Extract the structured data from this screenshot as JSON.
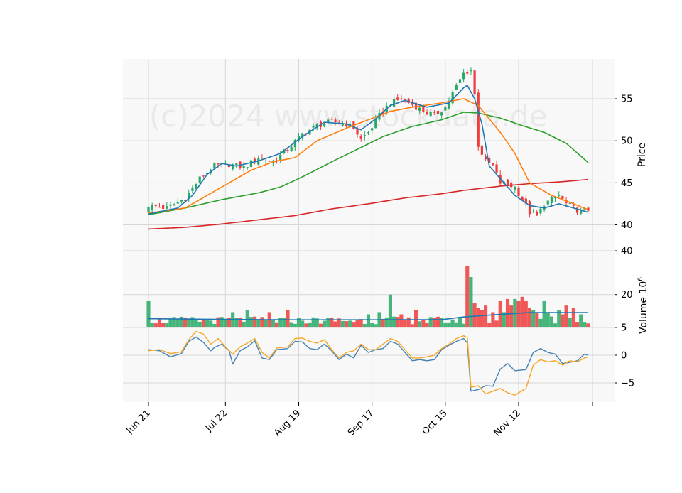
{
  "chart_data": {
    "type": "candlestick",
    "watermark": "(c)2024 www.stockdata.de",
    "x_tick_labels": [
      "Jun 21",
      "Jul 22",
      "Aug 19",
      "Sep 17",
      "Oct 15",
      "Nov 12"
    ],
    "x_tick_index": [
      0,
      21,
      41,
      61,
      81,
      101
    ],
    "n_bars": 121,
    "colors": {
      "up": "#26a965",
      "down": "#ef3b3b",
      "sma_fast": "#1f77b4",
      "sma_mid": "#ff7f0e",
      "sma_slow": "#2ca02c",
      "sma_long": "#d62728",
      "vol_avg": "#1f77b4",
      "osc1": "#4682b4",
      "osc2": "#f5a623"
    },
    "price_panel": {
      "ylabel": "Price",
      "ylim": [
        38,
        60
      ],
      "ticks": [
        40,
        45,
        50,
        55
      ],
      "tick_labels": [
        "40",
        "45",
        "50",
        "55"
      ],
      "close_anchors": [
        [
          0,
          42.3
        ],
        [
          5,
          42.0
        ],
        [
          10,
          43.2
        ],
        [
          14,
          45.5
        ],
        [
          18,
          47.0
        ],
        [
          22,
          47.2
        ],
        [
          26,
          46.8
        ],
        [
          30,
          48.0
        ],
        [
          34,
          47.5
        ],
        [
          38,
          49.0
        ],
        [
          42,
          50.8
        ],
        [
          46,
          51.8
        ],
        [
          50,
          52.3
        ],
        [
          54,
          52.0
        ],
        [
          56,
          51.5
        ],
        [
          58,
          50.2
        ],
        [
          60,
          51.0
        ],
        [
          63,
          53.0
        ],
        [
          66,
          54.5
        ],
        [
          69,
          55.0
        ],
        [
          72,
          54.3
        ],
        [
          75,
          53.5
        ],
        [
          78,
          53.0
        ],
        [
          81,
          54.0
        ],
        [
          84,
          56.5
        ],
        [
          86,
          58.0
        ],
        [
          88,
          58.5
        ],
        [
          89,
          55.5
        ],
        [
          90,
          49.5
        ],
        [
          92,
          47.5
        ],
        [
          94,
          47.0
        ],
        [
          96,
          45.0
        ],
        [
          98,
          44.8
        ],
        [
          100,
          44.5
        ],
        [
          102,
          43.0
        ],
        [
          104,
          41.5
        ],
        [
          106,
          41.0
        ],
        [
          108,
          42.5
        ],
        [
          110,
          43.0
        ],
        [
          112,
          43.5
        ],
        [
          114,
          42.5
        ],
        [
          116,
          42.0
        ],
        [
          118,
          41.5
        ],
        [
          120,
          41.8
        ]
      ],
      "sma_fast_anchors": [
        [
          0,
          41.3
        ],
        [
          8,
          42.0
        ],
        [
          12,
          43.5
        ],
        [
          16,
          46.0
        ],
        [
          20,
          47.3
        ],
        [
          24,
          47.0
        ],
        [
          30,
          47.6
        ],
        [
          36,
          48.5
        ],
        [
          42,
          50.5
        ],
        [
          48,
          52.2
        ],
        [
          54,
          52.0
        ],
        [
          58,
          51.3
        ],
        [
          62,
          52.6
        ],
        [
          66,
          54.2
        ],
        [
          70,
          54.8
        ],
        [
          76,
          54.0
        ],
        [
          82,
          54.5
        ],
        [
          86,
          56.3
        ],
        [
          87,
          56.6
        ],
        [
          89,
          55.0
        ],
        [
          91,
          52.0
        ],
        [
          93,
          47.0
        ],
        [
          96,
          45.5
        ],
        [
          100,
          43.5
        ],
        [
          104,
          42.3
        ],
        [
          108,
          42.0
        ],
        [
          112,
          42.5
        ],
        [
          116,
          42.0
        ],
        [
          120,
          41.5
        ]
      ],
      "sma_mid_anchors": [
        [
          0,
          41.4
        ],
        [
          10,
          42.0
        ],
        [
          20,
          44.5
        ],
        [
          28,
          46.5
        ],
        [
          34,
          47.5
        ],
        [
          40,
          48.0
        ],
        [
          46,
          50.0
        ],
        [
          54,
          51.5
        ],
        [
          60,
          52.5
        ],
        [
          66,
          53.5
        ],
        [
          72,
          54.0
        ],
        [
          80,
          54.5
        ],
        [
          86,
          55.0
        ],
        [
          90,
          54.2
        ],
        [
          96,
          51.0
        ],
        [
          100,
          48.5
        ],
        [
          104,
          45.0
        ],
        [
          110,
          43.5
        ],
        [
          116,
          42.5
        ],
        [
          120,
          41.8
        ]
      ],
      "sma_slow_anchors": [
        [
          0,
          41.2
        ],
        [
          10,
          42.0
        ],
        [
          20,
          43.0
        ],
        [
          30,
          43.8
        ],
        [
          36,
          44.5
        ],
        [
          42,
          45.7
        ],
        [
          50,
          47.5
        ],
        [
          58,
          49.2
        ],
        [
          64,
          50.5
        ],
        [
          72,
          51.7
        ],
        [
          80,
          52.5
        ],
        [
          86,
          53.4
        ],
        [
          90,
          53.3
        ],
        [
          96,
          52.7
        ],
        [
          102,
          51.8
        ],
        [
          108,
          51.0
        ],
        [
          114,
          49.7
        ],
        [
          120,
          47.4
        ]
      ],
      "sma_long_anchors": [
        [
          0,
          39.5
        ],
        [
          10,
          39.7
        ],
        [
          20,
          40.1
        ],
        [
          30,
          40.6
        ],
        [
          40,
          41.1
        ],
        [
          50,
          41.9
        ],
        [
          60,
          42.5
        ],
        [
          70,
          43.2
        ],
        [
          80,
          43.7
        ],
        [
          86,
          44.1
        ],
        [
          96,
          44.6
        ],
        [
          104,
          44.9
        ],
        [
          112,
          45.1
        ],
        [
          120,
          45.4
        ]
      ]
    },
    "volume_panel": {
      "ylabel": "Volume",
      "unit": "10^6",
      "ylim": [
        5,
        40
      ],
      "ticks": [
        5,
        20,
        40
      ],
      "tick_labels": [
        "5",
        "20",
        "40"
      ],
      "avg_anchors": [
        [
          0,
          9.0
        ],
        [
          20,
          8.7
        ],
        [
          40,
          8.5
        ],
        [
          60,
          8.5
        ],
        [
          80,
          8.6
        ],
        [
          86,
          9.8
        ],
        [
          96,
          11.0
        ],
        [
          104,
          11.8
        ],
        [
          120,
          11.8
        ]
      ],
      "spikes": [
        [
          0,
          17
        ],
        [
          23,
          12
        ],
        [
          27,
          13
        ],
        [
          33,
          12
        ],
        [
          38,
          13
        ],
        [
          60,
          11
        ],
        [
          63,
          12
        ],
        [
          66,
          20
        ],
        [
          69,
          11
        ],
        [
          73,
          13
        ],
        [
          87,
          33
        ],
        [
          88,
          28
        ],
        [
          89,
          16
        ],
        [
          90,
          14
        ],
        [
          91,
          13
        ],
        [
          92,
          15
        ],
        [
          94,
          12
        ],
        [
          96,
          17
        ],
        [
          97,
          12
        ],
        [
          98,
          18
        ],
        [
          99,
          15
        ],
        [
          100,
          18
        ],
        [
          101,
          17
        ],
        [
          102,
          19
        ],
        [
          103,
          17
        ],
        [
          104,
          14
        ],
        [
          105,
          13
        ],
        [
          106,
          12
        ],
        [
          108,
          17
        ],
        [
          109,
          12
        ],
        [
          110,
          10
        ],
        [
          112,
          13
        ],
        [
          113,
          11
        ],
        [
          114,
          15
        ],
        [
          116,
          14
        ],
        [
          118,
          11
        ]
      ]
    },
    "oscillator_panel": {
      "ylim": [
        -8.2,
        5.2
      ],
      "ticks": [
        -5,
        0,
        5
      ],
      "tick_labels": [
        "−5",
        "0",
        "5"
      ],
      "line1_anchors": [
        [
          0,
          1.0
        ],
        [
          3,
          0.8
        ],
        [
          6,
          -0.3
        ],
        [
          9,
          0.3
        ],
        [
          11,
          2.5
        ],
        [
          13,
          3.3
        ],
        [
          15,
          2.3
        ],
        [
          17,
          0.8
        ],
        [
          18,
          1.4
        ],
        [
          20,
          2.0
        ],
        [
          22,
          0.8
        ],
        [
          23,
          -1.6
        ],
        [
          25,
          0.8
        ],
        [
          27,
          1.5
        ],
        [
          29,
          2.6
        ],
        [
          31,
          -0.5
        ],
        [
          33,
          -0.8
        ],
        [
          35,
          1.0
        ],
        [
          38,
          1.2
        ],
        [
          40,
          2.5
        ],
        [
          42,
          2.4
        ],
        [
          44,
          1.2
        ],
        [
          46,
          1.0
        ],
        [
          48,
          2.0
        ],
        [
          50,
          0.8
        ],
        [
          52,
          -0.8
        ],
        [
          54,
          0.2
        ],
        [
          56,
          -0.5
        ],
        [
          58,
          1.8
        ],
        [
          60,
          0.5
        ],
        [
          62,
          1.0
        ],
        [
          64,
          1.2
        ],
        [
          66,
          2.5
        ],
        [
          68,
          2.0
        ],
        [
          70,
          0.5
        ],
        [
          72,
          -1.0
        ],
        [
          74,
          -0.8
        ],
        [
          76,
          -1.0
        ],
        [
          78,
          -0.8
        ],
        [
          80,
          1.0
        ],
        [
          82,
          1.8
        ],
        [
          84,
          2.5
        ],
        [
          86,
          3.0
        ],
        [
          87,
          2.2
        ],
        [
          88,
          -6.5
        ],
        [
          90,
          -6.2
        ],
        [
          92,
          -5.5
        ],
        [
          94,
          -5.6
        ],
        [
          96,
          -2.5
        ],
        [
          98,
          -1.5
        ],
        [
          100,
          -2.8
        ],
        [
          103,
          -2.6
        ],
        [
          105,
          0.5
        ],
        [
          107,
          1.2
        ],
        [
          109,
          0.5
        ],
        [
          111,
          0.2
        ],
        [
          113,
          -1.5
        ],
        [
          115,
          -1.3
        ],
        [
          117,
          -1.0
        ],
        [
          119,
          0.2
        ],
        [
          120,
          0.0
        ]
      ],
      "line2_anchors": [
        [
          0,
          0.8
        ],
        [
          3,
          1.0
        ],
        [
          6,
          0.3
        ],
        [
          9,
          0.6
        ],
        [
          11,
          2.8
        ],
        [
          13,
          4.3
        ],
        [
          15,
          3.8
        ],
        [
          17,
          2.0
        ],
        [
          19,
          3.0
        ],
        [
          21,
          1.5
        ],
        [
          23,
          0.2
        ],
        [
          25,
          1.5
        ],
        [
          27,
          2.2
        ],
        [
          29,
          3.0
        ],
        [
          31,
          0.5
        ],
        [
          33,
          -0.5
        ],
        [
          35,
          1.3
        ],
        [
          38,
          1.5
        ],
        [
          40,
          3.0
        ],
        [
          42,
          3.1
        ],
        [
          44,
          2.5
        ],
        [
          46,
          2.2
        ],
        [
          48,
          2.8
        ],
        [
          50,
          1.0
        ],
        [
          52,
          -0.5
        ],
        [
          54,
          0.5
        ],
        [
          56,
          0.8
        ],
        [
          58,
          2.0
        ],
        [
          60,
          1.0
        ],
        [
          62,
          1.0
        ],
        [
          64,
          2.0
        ],
        [
          66,
          3.0
        ],
        [
          68,
          2.5
        ],
        [
          70,
          1.0
        ],
        [
          72,
          -0.5
        ],
        [
          74,
          -0.5
        ],
        [
          76,
          -0.3
        ],
        [
          78,
          0.0
        ],
        [
          80,
          1.2
        ],
        [
          82,
          2.0
        ],
        [
          84,
          3.0
        ],
        [
          86,
          3.5
        ],
        [
          87,
          3.2
        ],
        [
          88,
          -5.8
        ],
        [
          90,
          -5.5
        ],
        [
          92,
          -7.0
        ],
        [
          94,
          -6.5
        ],
        [
          96,
          -6.0
        ],
        [
          98,
          -6.8
        ],
        [
          100,
          -7.2
        ],
        [
          103,
          -6.0
        ],
        [
          105,
          -1.8
        ],
        [
          107,
          -0.8
        ],
        [
          109,
          -1.2
        ],
        [
          111,
          -1.0
        ],
        [
          113,
          -1.8
        ],
        [
          115,
          -1.0
        ],
        [
          117,
          -1.2
        ],
        [
          119,
          -0.5
        ],
        [
          120,
          -0.3
        ]
      ]
    }
  }
}
